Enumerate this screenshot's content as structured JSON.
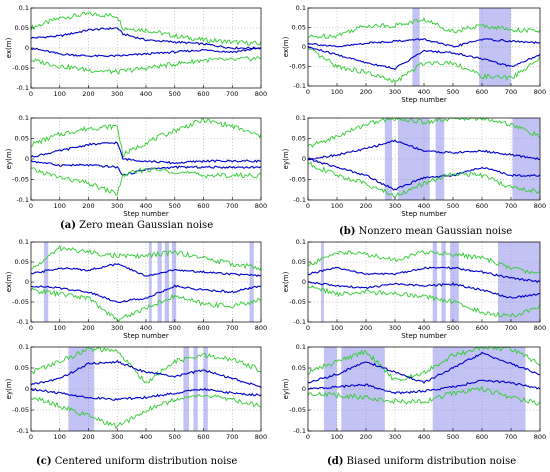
{
  "captions": [
    {
      "letter": "(a)",
      "text": "Zero mean Gaussian noise"
    },
    {
      "letter": "(b)",
      "text": "Nonzero mean Gaussian noise"
    },
    {
      "letter": "(c)",
      "text": "Centered uniform distribution noise"
    },
    {
      "letter": "(d)",
      "text": "Biased uniform distribution noise"
    }
  ],
  "colors": {
    "estimate": "#0000cc",
    "bound": "#33cc33",
    "shade": "#b3b3f2",
    "axis": "#000000"
  },
  "chart_data": [
    {
      "panel": "a",
      "type": "line",
      "ylabel": "ex(m)",
      "xlabel": "",
      "xlim": [
        0,
        800
      ],
      "ylim": [
        -0.1,
        0.1
      ],
      "xticks": [
        0,
        100,
        200,
        300,
        400,
        500,
        600,
        700,
        800
      ],
      "yticks": [
        -0.1,
        -0.05,
        0,
        0.05,
        0.1
      ],
      "grid": true,
      "shaded": [],
      "series": [
        {
          "role": "bound",
          "x": [
            0,
            100,
            200,
            300,
            320,
            400,
            500,
            600,
            700,
            800
          ],
          "y": [
            0.05,
            0.075,
            0.085,
            0.08,
            0.05,
            0.045,
            0.03,
            0.02,
            0.015,
            0.01
          ]
        },
        {
          "role": "estimate",
          "x": [
            0,
            100,
            200,
            300,
            320,
            400,
            500,
            600,
            700,
            800
          ],
          "y": [
            0.025,
            0.03,
            0.045,
            0.05,
            0.035,
            0.02,
            0.015,
            0.01,
            0.0,
            0.0
          ]
        },
        {
          "role": "estimate",
          "x": [
            0,
            100,
            200,
            300,
            400,
            500,
            600,
            700,
            800
          ],
          "y": [
            0.0,
            -0.015,
            -0.02,
            -0.02,
            -0.015,
            -0.01,
            -0.005,
            -0.01,
            0.0
          ]
        },
        {
          "role": "bound",
          "x": [
            0,
            100,
            200,
            300,
            400,
            500,
            600,
            700,
            800
          ],
          "y": [
            -0.03,
            -0.045,
            -0.055,
            -0.06,
            -0.05,
            -0.04,
            -0.03,
            -0.03,
            -0.025
          ]
        }
      ]
    },
    {
      "panel": "a",
      "type": "line",
      "ylabel": "ey(m)",
      "xlabel": "Step number",
      "xlim": [
        0,
        800
      ],
      "ylim": [
        -0.1,
        0.1
      ],
      "xticks": [
        0,
        100,
        200,
        300,
        400,
        500,
        600,
        700,
        800
      ],
      "yticks": [
        -0.1,
        -0.05,
        0,
        0.05,
        0.1
      ],
      "grid": true,
      "shaded": [],
      "series": [
        {
          "role": "bound",
          "x": [
            0,
            100,
            200,
            300,
            320,
            400,
            500,
            600,
            700,
            800
          ],
          "y": [
            0.035,
            0.06,
            0.075,
            0.08,
            0.01,
            0.04,
            0.07,
            0.095,
            0.08,
            0.055
          ]
        },
        {
          "role": "estimate",
          "x": [
            0,
            100,
            200,
            300,
            320,
            400,
            500,
            600,
            700,
            800
          ],
          "y": [
            0.005,
            0.02,
            0.035,
            0.04,
            0.0,
            -0.005,
            -0.01,
            -0.005,
            -0.005,
            -0.005
          ]
        },
        {
          "role": "estimate",
          "x": [
            0,
            100,
            200,
            300,
            320,
            400,
            500,
            600,
            700,
            800
          ],
          "y": [
            -0.005,
            -0.015,
            -0.015,
            -0.02,
            -0.04,
            -0.025,
            -0.02,
            -0.02,
            -0.02,
            -0.02
          ]
        },
        {
          "role": "bound",
          "x": [
            0,
            100,
            200,
            300,
            320,
            400,
            500,
            600,
            700,
            800
          ],
          "y": [
            -0.025,
            -0.045,
            -0.06,
            -0.085,
            -0.04,
            -0.025,
            -0.03,
            -0.04,
            -0.04,
            -0.04
          ]
        }
      ]
    },
    {
      "panel": "b",
      "type": "line",
      "ylabel": "ex(m)",
      "xlabel": "Step number",
      "xlim": [
        0,
        800
      ],
      "ylim": [
        -0.1,
        0.1
      ],
      "xticks": [
        0,
        100,
        200,
        300,
        400,
        500,
        600,
        700,
        800
      ],
      "yticks": [
        -0.1,
        -0.05,
        0,
        0.05,
        0.1
      ],
      "grid": true,
      "shaded": [
        [
          360,
          385
        ],
        [
          590,
          700
        ]
      ],
      "series": [
        {
          "role": "bound",
          "x": [
            0,
            100,
            200,
            300,
            400,
            500,
            600,
            700,
            800
          ],
          "y": [
            0.025,
            0.03,
            0.055,
            0.055,
            0.07,
            0.04,
            0.055,
            0.045,
            0.04
          ]
        },
        {
          "role": "estimate",
          "x": [
            0,
            100,
            200,
            300,
            400,
            500,
            600,
            700,
            800
          ],
          "y": [
            0.01,
            0.0,
            0.01,
            0.015,
            0.02,
            0.0,
            0.02,
            0.015,
            0.01
          ]
        },
        {
          "role": "estimate",
          "x": [
            0,
            100,
            200,
            300,
            400,
            500,
            600,
            700,
            800
          ],
          "y": [
            0.0,
            -0.02,
            -0.04,
            -0.055,
            -0.01,
            -0.015,
            -0.03,
            -0.05,
            -0.02
          ]
        },
        {
          "role": "bound",
          "x": [
            0,
            100,
            200,
            300,
            400,
            500,
            600,
            700,
            800
          ],
          "y": [
            -0.005,
            -0.05,
            -0.065,
            -0.09,
            -0.04,
            -0.04,
            -0.075,
            -0.08,
            -0.03
          ]
        }
      ]
    },
    {
      "panel": "b",
      "type": "line",
      "ylabel": "ey(m)",
      "xlabel": "Step number",
      "xlim": [
        0,
        800
      ],
      "ylim": [
        -0.1,
        0.1
      ],
      "xticks": [
        0,
        100,
        200,
        300,
        400,
        500,
        600,
        700,
        800
      ],
      "yticks": [
        -0.1,
        -0.05,
        0,
        0.05,
        0.1
      ],
      "grid": true,
      "shaded": [
        [
          265,
          290
        ],
        [
          310,
          420
        ],
        [
          440,
          470
        ],
        [
          705,
          800
        ]
      ],
      "series": [
        {
          "role": "bound",
          "x": [
            0,
            100,
            200,
            300,
            400,
            500,
            600,
            700,
            800
          ],
          "y": [
            0.03,
            0.055,
            0.085,
            0.1,
            0.09,
            0.1,
            0.1,
            0.085,
            0.055
          ]
        },
        {
          "role": "estimate",
          "x": [
            0,
            100,
            200,
            300,
            400,
            500,
            600,
            700,
            800
          ],
          "y": [
            0.0,
            0.01,
            0.025,
            0.045,
            0.02,
            0.015,
            0.02,
            0.01,
            0.0
          ]
        },
        {
          "role": "estimate",
          "x": [
            0,
            100,
            200,
            300,
            400,
            500,
            600,
            700,
            800
          ],
          "y": [
            0.0,
            -0.02,
            -0.04,
            -0.075,
            -0.045,
            -0.04,
            -0.02,
            -0.04,
            -0.04
          ]
        },
        {
          "role": "bound",
          "x": [
            0,
            100,
            200,
            300,
            400,
            500,
            600,
            700,
            800
          ],
          "y": [
            -0.01,
            -0.04,
            -0.06,
            -0.09,
            -0.06,
            -0.035,
            -0.04,
            -0.07,
            -0.08
          ]
        }
      ]
    },
    {
      "panel": "c",
      "type": "line",
      "ylabel": "ex(m)",
      "xlabel": "Step number",
      "xlim": [
        0,
        800
      ],
      "ylim": [
        -0.1,
        0.1
      ],
      "xticks": [
        0,
        100,
        200,
        300,
        400,
        500,
        600,
        700,
        800
      ],
      "yticks": [
        -0.1,
        -0.05,
        0,
        0.05,
        0.1
      ],
      "grid": true,
      "shaded": [
        [
          45,
          60
        ],
        [
          410,
          420
        ],
        [
          440,
          455
        ],
        [
          465,
          480
        ],
        [
          490,
          505
        ],
        [
          760,
          775
        ]
      ],
      "series": [
        {
          "role": "bound",
          "x": [
            0,
            100,
            200,
            300,
            400,
            500,
            600,
            700,
            800
          ],
          "y": [
            0.03,
            0.085,
            0.075,
            0.065,
            0.065,
            0.075,
            0.06,
            0.045,
            0.035
          ]
        },
        {
          "role": "estimate",
          "x": [
            0,
            100,
            200,
            300,
            400,
            500,
            600,
            700,
            800
          ],
          "y": [
            0.02,
            0.035,
            0.03,
            0.045,
            0.015,
            0.03,
            0.025,
            0.02,
            0.015
          ]
        },
        {
          "role": "estimate",
          "x": [
            0,
            100,
            200,
            300,
            400,
            500,
            600,
            700,
            800
          ],
          "y": [
            -0.01,
            -0.015,
            -0.025,
            -0.05,
            -0.04,
            -0.01,
            -0.02,
            -0.025,
            -0.01
          ]
        },
        {
          "role": "bound",
          "x": [
            0,
            100,
            200,
            300,
            400,
            500,
            600,
            700,
            800
          ],
          "y": [
            -0.02,
            -0.03,
            -0.04,
            -0.095,
            -0.065,
            -0.035,
            -0.055,
            -0.06,
            -0.045
          ]
        }
      ]
    },
    {
      "panel": "c",
      "type": "line",
      "ylabel": "ey(m)",
      "xlabel": "",
      "xlim": [
        0,
        800
      ],
      "ylim": [
        -0.1,
        0.1
      ],
      "xticks": [
        0,
        100,
        200,
        300,
        400,
        500,
        600,
        700,
        800
      ],
      "yticks": [
        -0.1,
        -0.05,
        0,
        0.05,
        0.1
      ],
      "grid": true,
      "shaded": [
        [
          130,
          220
        ],
        [
          530,
          550
        ],
        [
          565,
          580
        ],
        [
          600,
          615
        ]
      ],
      "series": [
        {
          "role": "bound",
          "x": [
            0,
            100,
            200,
            300,
            400,
            500,
            600,
            700,
            800
          ],
          "y": [
            0.04,
            0.065,
            0.095,
            0.09,
            0.015,
            0.065,
            0.08,
            0.07,
            0.045
          ]
        },
        {
          "role": "estimate",
          "x": [
            0,
            100,
            200,
            300,
            400,
            500,
            600,
            700,
            800
          ],
          "y": [
            0.01,
            0.025,
            0.06,
            0.065,
            0.04,
            0.03,
            0.045,
            0.025,
            0.005
          ]
        },
        {
          "role": "estimate",
          "x": [
            0,
            100,
            200,
            300,
            400,
            500,
            600,
            700,
            800
          ],
          "y": [
            0.0,
            -0.01,
            -0.02,
            -0.025,
            -0.02,
            -0.01,
            0.0,
            -0.01,
            -0.015
          ]
        },
        {
          "role": "bound",
          "x": [
            0,
            100,
            200,
            300,
            400,
            500,
            600,
            700,
            800
          ],
          "y": [
            -0.02,
            -0.04,
            -0.065,
            -0.09,
            -0.05,
            -0.025,
            -0.015,
            -0.025,
            -0.04
          ]
        }
      ]
    },
    {
      "panel": "d",
      "type": "line",
      "ylabel": "ex(m)",
      "xlabel": "Step number",
      "xlim": [
        0,
        800
      ],
      "ylim": [
        -0.1,
        0.1
      ],
      "xticks": [
        0,
        100,
        200,
        300,
        400,
        500,
        600,
        700,
        800
      ],
      "yticks": [
        -0.1,
        -0.05,
        0,
        0.05,
        0.1
      ],
      "grid": true,
      "shaded": [
        [
          45,
          55
        ],
        [
          430,
          445
        ],
        [
          460,
          475
        ],
        [
          490,
          520
        ],
        [
          655,
          800
        ]
      ],
      "series": [
        {
          "role": "bound",
          "x": [
            0,
            100,
            200,
            300,
            400,
            500,
            600,
            700,
            800
          ],
          "y": [
            0.04,
            0.075,
            0.07,
            0.055,
            0.075,
            0.07,
            0.06,
            0.035,
            0.02
          ]
        },
        {
          "role": "estimate",
          "x": [
            0,
            100,
            200,
            300,
            400,
            500,
            600,
            700,
            800
          ],
          "y": [
            0.02,
            0.035,
            0.02,
            0.02,
            0.035,
            0.035,
            0.025,
            0.01,
            0.0
          ]
        },
        {
          "role": "estimate",
          "x": [
            0,
            100,
            200,
            300,
            400,
            500,
            600,
            700,
            800
          ],
          "y": [
            0.0,
            -0.01,
            -0.015,
            -0.005,
            -0.01,
            -0.005,
            -0.02,
            -0.04,
            -0.03
          ]
        },
        {
          "role": "bound",
          "x": [
            0,
            100,
            200,
            300,
            400,
            500,
            600,
            700,
            800
          ],
          "y": [
            -0.01,
            -0.03,
            -0.025,
            -0.03,
            -0.035,
            -0.05,
            -0.075,
            -0.085,
            -0.06
          ]
        }
      ]
    },
    {
      "panel": "d",
      "type": "line",
      "ylabel": "ey(m)",
      "xlabel": "",
      "xlim": [
        0,
        800
      ],
      "ylim": [
        -0.1,
        0.1
      ],
      "xticks": [
        0,
        100,
        200,
        300,
        400,
        500,
        600,
        700,
        800
      ],
      "yticks": [
        -0.1,
        -0.05,
        0,
        0.05,
        0.1
      ],
      "grid": true,
      "shaded": [
        [
          55,
          100
        ],
        [
          115,
          265
        ],
        [
          430,
          750
        ]
      ],
      "series": [
        {
          "role": "bound",
          "x": [
            0,
            100,
            200,
            300,
            400,
            500,
            600,
            700,
            800
          ],
          "y": [
            0.04,
            0.065,
            0.09,
            0.02,
            0.04,
            0.08,
            0.1,
            0.095,
            0.06
          ]
        },
        {
          "role": "estimate",
          "x": [
            0,
            100,
            200,
            300,
            400,
            500,
            600,
            700,
            800
          ],
          "y": [
            0.015,
            0.035,
            0.065,
            0.04,
            0.015,
            0.05,
            0.085,
            0.06,
            0.035
          ]
        },
        {
          "role": "estimate",
          "x": [
            0,
            100,
            200,
            300,
            400,
            500,
            600,
            700,
            800
          ],
          "y": [
            0.0,
            0.005,
            0.01,
            -0.01,
            -0.005,
            0.005,
            0.02,
            0.015,
            0.0
          ]
        },
        {
          "role": "bound",
          "x": [
            0,
            100,
            200,
            300,
            400,
            500,
            600,
            700,
            800
          ],
          "y": [
            -0.01,
            -0.015,
            -0.02,
            -0.03,
            -0.03,
            -0.01,
            0.0,
            -0.02,
            -0.035
          ]
        }
      ]
    }
  ]
}
